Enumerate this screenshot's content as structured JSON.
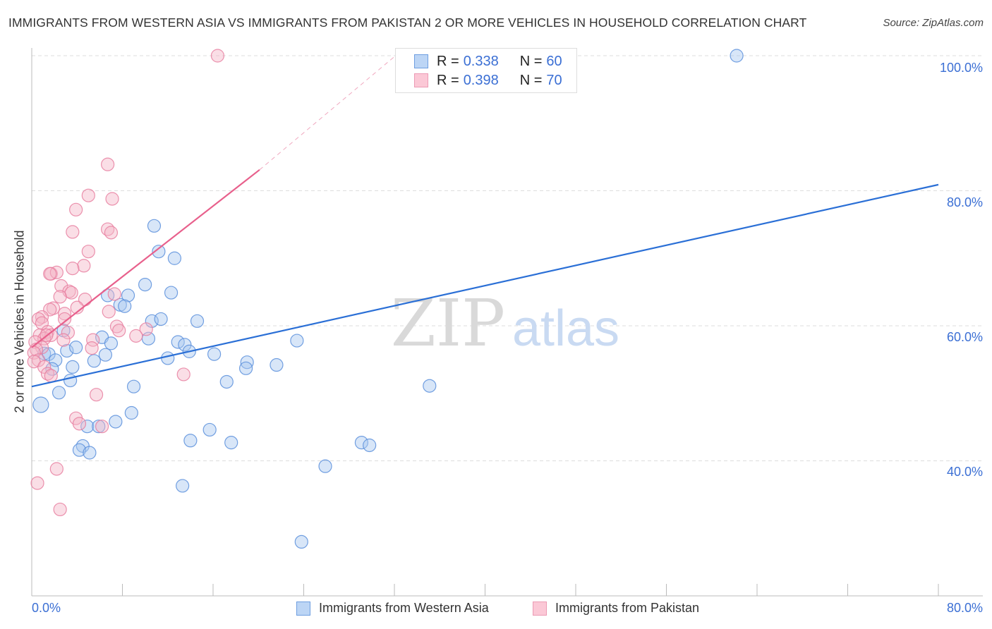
{
  "chart_data": {
    "type": "scatter",
    "title": "IMMIGRANTS FROM WESTERN ASIA VS IMMIGRANTS FROM PAKISTAN 2 OR MORE VEHICLES IN HOUSEHOLD CORRELATION CHART",
    "source": "Source: ZipAtlas.com",
    "xlabel": "",
    "ylabel": "2 or more Vehicles in Household",
    "xlim": [
      0,
      80
    ],
    "ylim": [
      20,
      100
    ],
    "x_tick_labels": [
      "0.0%",
      "80.0%"
    ],
    "y_ticks": [
      100,
      80,
      60,
      40
    ],
    "y_tick_labels": [
      "100.0%",
      "80.0%",
      "60.0%",
      "40.0%"
    ],
    "grid": true,
    "watermark": "ZIPatlas",
    "legend_stats": [
      {
        "r_label": "R = ",
        "r": "0.338",
        "n_label": "N = ",
        "n": "60"
      },
      {
        "r_label": "R = ",
        "r": "0.398",
        "n_label": "N = ",
        "n": "70"
      }
    ],
    "series": [
      {
        "name": "Immigrants from Western Asia",
        "color": "#5b8fdc",
        "fill": "#a9c8f0",
        "trend": {
          "x": [
            0,
            80
          ],
          "y": [
            51.0,
            80.9
          ]
        },
        "points": [
          [
            62.2,
            100
          ],
          [
            42.3,
            99.9
          ],
          [
            10.8,
            74.8
          ],
          [
            11.2,
            71.0
          ],
          [
            12.6,
            70.0
          ],
          [
            10.0,
            66.1
          ],
          [
            12.3,
            64.9
          ],
          [
            6.7,
            64.5
          ],
          [
            8.5,
            64.5
          ],
          [
            7.8,
            63.1
          ],
          [
            8.2,
            62.9
          ],
          [
            10.6,
            60.7
          ],
          [
            11.4,
            61.0
          ],
          [
            14.6,
            60.7
          ],
          [
            2.8,
            59.3
          ],
          [
            6.2,
            58.3
          ],
          [
            10.3,
            58.1
          ],
          [
            7.0,
            57.4
          ],
          [
            12.9,
            57.6
          ],
          [
            13.5,
            57.2
          ],
          [
            13.9,
            56.2
          ],
          [
            23.4,
            57.8
          ],
          [
            1.1,
            55.9
          ],
          [
            1.5,
            55.8
          ],
          [
            3.1,
            56.3
          ],
          [
            3.9,
            56.8
          ],
          [
            6.5,
            55.7
          ],
          [
            16.1,
            55.8
          ],
          [
            12.0,
            55.2
          ],
          [
            2.1,
            54.9
          ],
          [
            5.5,
            54.8
          ],
          [
            19.0,
            54.6
          ],
          [
            21.6,
            54.2
          ],
          [
            18.9,
            53.7
          ],
          [
            3.6,
            53.9
          ],
          [
            1.8,
            53.6
          ],
          [
            3.4,
            51.9
          ],
          [
            17.2,
            51.7
          ],
          [
            35.1,
            51.1
          ],
          [
            9.0,
            51.0
          ],
          [
            2.4,
            50.1
          ],
          [
            0.8,
            48.3
          ],
          [
            8.8,
            47.1
          ],
          [
            7.4,
            45.8
          ],
          [
            4.9,
            45.1
          ],
          [
            5.9,
            45.1
          ],
          [
            15.7,
            44.6
          ],
          [
            14.0,
            43.0
          ],
          [
            17.6,
            42.7
          ],
          [
            4.5,
            42.2
          ],
          [
            4.2,
            41.6
          ],
          [
            5.1,
            41.2
          ],
          [
            29.1,
            42.7
          ],
          [
            29.8,
            42.3
          ],
          [
            25.9,
            39.2
          ],
          [
            13.3,
            36.3
          ],
          [
            23.8,
            28.0
          ]
        ]
      },
      {
        "name": "Immigrants from Pakistan",
        "color": "#e87fa0",
        "fill": "#f5b5c8",
        "trend": {
          "x": [
            0,
            20.1
          ],
          "y": [
            56.8,
            83.1
          ]
        },
        "trend_dashed": {
          "x": [
            20.1,
            32.1
          ],
          "y": [
            83.1,
            100
          ]
        },
        "points": [
          [
            16.4,
            100
          ],
          [
            6.7,
            83.9
          ],
          [
            5.0,
            79.3
          ],
          [
            7.1,
            78.8
          ],
          [
            3.9,
            77.2
          ],
          [
            6.7,
            74.3
          ],
          [
            3.6,
            73.9
          ],
          [
            7.0,
            73.8
          ],
          [
            5.0,
            71.0
          ],
          [
            4.6,
            68.9
          ],
          [
            3.6,
            68.5
          ],
          [
            1.7,
            67.7
          ],
          [
            2.2,
            67.9
          ],
          [
            1.6,
            67.7
          ],
          [
            2.6,
            65.9
          ],
          [
            3.3,
            65.1
          ],
          [
            3.5,
            64.9
          ],
          [
            2.5,
            64.3
          ],
          [
            4.7,
            63.9
          ],
          [
            4.0,
            62.7
          ],
          [
            1.9,
            62.6
          ],
          [
            1.6,
            62.4
          ],
          [
            2.9,
            61.8
          ],
          [
            0.9,
            61.3
          ],
          [
            0.6,
            61.0
          ],
          [
            2.9,
            61.0
          ],
          [
            0.9,
            60.4
          ],
          [
            7.5,
            59.9
          ],
          [
            7.7,
            59.3
          ],
          [
            10.1,
            59.5
          ],
          [
            3.2,
            59.0
          ],
          [
            1.4,
            59.1
          ],
          [
            1.7,
            58.6
          ],
          [
            0.7,
            58.6
          ],
          [
            1.1,
            58.1
          ],
          [
            0.3,
            57.6
          ],
          [
            2.8,
            57.9
          ],
          [
            5.4,
            57.9
          ],
          [
            9.2,
            58.5
          ],
          [
            5.3,
            56.7
          ],
          [
            0.9,
            56.8
          ],
          [
            0.4,
            56.5
          ],
          [
            0.2,
            56.0
          ],
          [
            0.6,
            54.9
          ],
          [
            0.2,
            54.7
          ],
          [
            1.1,
            53.9
          ],
          [
            1.4,
            52.9
          ],
          [
            1.7,
            52.6
          ],
          [
            13.4,
            52.8
          ],
          [
            5.7,
            49.8
          ],
          [
            3.9,
            46.3
          ],
          [
            4.2,
            45.5
          ],
          [
            6.2,
            45.1
          ],
          [
            2.2,
            38.8
          ],
          [
            0.5,
            36.7
          ],
          [
            2.5,
            32.8
          ],
          [
            7.3,
            64.7
          ],
          [
            6.8,
            62.1
          ],
          [
            1.3,
            58.6
          ]
        ]
      }
    ]
  }
}
